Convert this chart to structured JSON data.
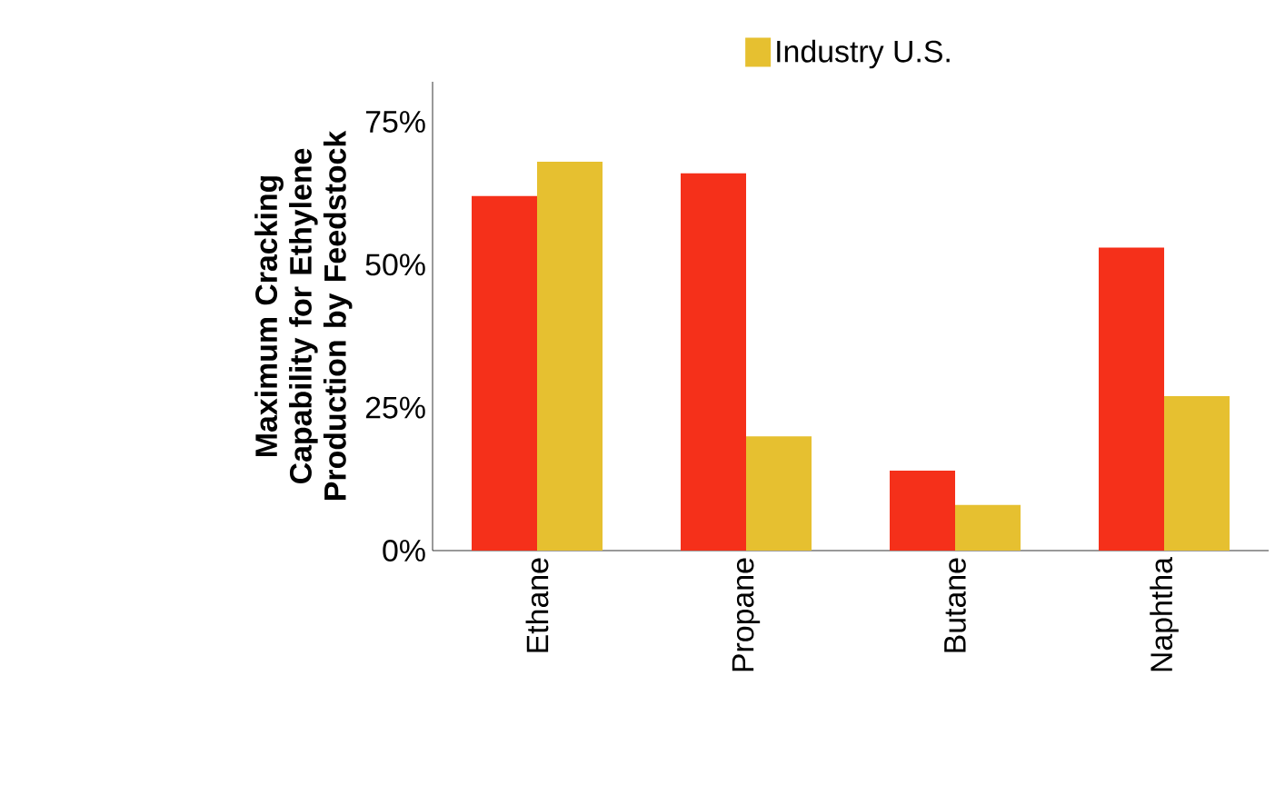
{
  "chart_data": {
    "type": "bar",
    "ylabel": "Maximum Cracking Capability for Ethylene Production by Feedstock",
    "categories": [
      "Ethane",
      "Propane",
      "Butane",
      "Naphtha"
    ],
    "series": [
      {
        "color": "#f5301a",
        "values": [
          62,
          66,
          14,
          53
        ]
      },
      {
        "name": "Industry U.S.",
        "color": "#e6c030",
        "values": [
          68,
          20,
          8,
          27
        ]
      }
    ],
    "ylim": [
      0,
      82
    ],
    "yticks": [
      {
        "value": 0,
        "label": "0%"
      },
      {
        "value": 25,
        "label": "25%"
      },
      {
        "value": 50,
        "label": "50%"
      },
      {
        "value": 75,
        "label": "75%"
      }
    ],
    "legend": "top",
    "grid": false
  }
}
